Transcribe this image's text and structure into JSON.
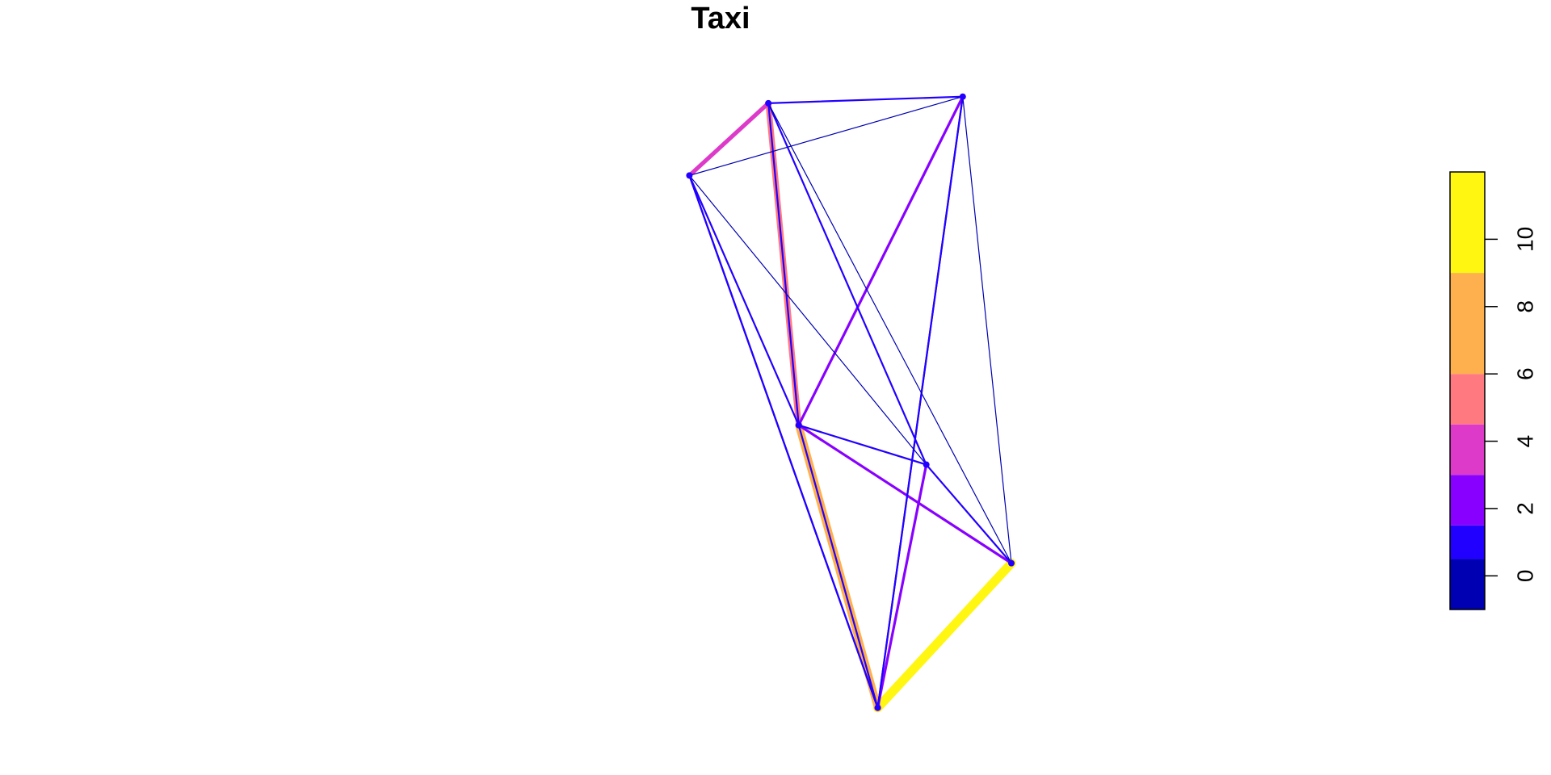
{
  "chart_data": {
    "type": "network-flow",
    "title": "Taxi",
    "nodes": [
      {
        "id": "A",
        "x": 0.45,
        "y": 0.83
      },
      {
        "id": "B",
        "x": 0.58,
        "y": 0.94
      },
      {
        "id": "C",
        "x": 0.9,
        "y": 0.95
      },
      {
        "id": "D",
        "x": 0.63,
        "y": 0.45
      },
      {
        "id": "E",
        "x": 0.84,
        "y": 0.39
      },
      {
        "id": "F",
        "x": 0.98,
        "y": 0.24
      },
      {
        "id": "G",
        "x": 0.76,
        "y": 0.02
      }
    ],
    "edges": [
      {
        "from": "A",
        "to": "B",
        "value": 4
      },
      {
        "from": "B",
        "to": "C",
        "value": 1
      },
      {
        "from": "A",
        "to": "C",
        "value": 0
      },
      {
        "from": "A",
        "to": "D",
        "value": 1
      },
      {
        "from": "A",
        "to": "E",
        "value": 0
      },
      {
        "from": "A",
        "to": "G",
        "value": 1
      },
      {
        "from": "B",
        "to": "D",
        "value": 6
      },
      {
        "from": "B",
        "to": "D",
        "value": 1
      },
      {
        "from": "B",
        "to": "E",
        "value": 1
      },
      {
        "from": "B",
        "to": "F",
        "value": 0
      },
      {
        "from": "C",
        "to": "D",
        "value": 2
      },
      {
        "from": "C",
        "to": "G",
        "value": 1
      },
      {
        "from": "C",
        "to": "F",
        "value": 0
      },
      {
        "from": "D",
        "to": "E",
        "value": 1
      },
      {
        "from": "D",
        "to": "F",
        "value": 2
      },
      {
        "from": "D",
        "to": "G",
        "value": 8
      },
      {
        "from": "D",
        "to": "G",
        "value": 1
      },
      {
        "from": "E",
        "to": "F",
        "value": 1
      },
      {
        "from": "E",
        "to": "G",
        "value": 2
      },
      {
        "from": "F",
        "to": "G",
        "value": 10
      },
      {
        "from": "A",
        "to": "G",
        "value": 1
      },
      {
        "from": "C",
        "to": "G",
        "value": 1
      }
    ],
    "legend": {
      "type": "color-key",
      "placement": "right",
      "breaks": [
        -1,
        0.5,
        1.5,
        3,
        4.5,
        6,
        9,
        12
      ],
      "colors": [
        "#0000B3",
        "#2200FF",
        "#8800FF",
        "#DD3ACA",
        "#FF7A80",
        "#FFB04E",
        "#FFF612"
      ],
      "ticks": [
        "0",
        "2",
        "4",
        "6",
        "8",
        "10"
      ],
      "tick_values": [
        0,
        2,
        4,
        6,
        8,
        10
      ]
    }
  }
}
